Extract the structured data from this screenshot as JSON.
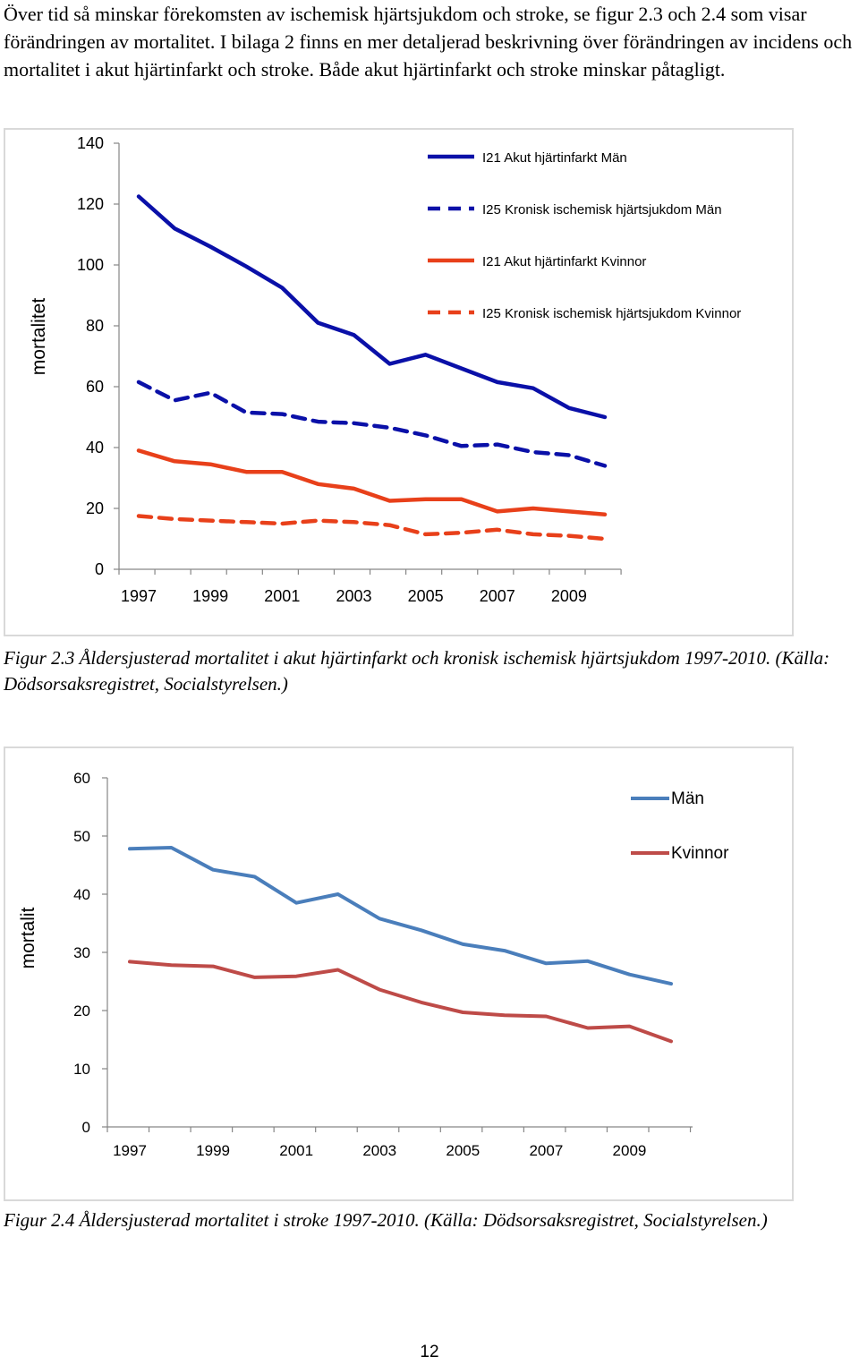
{
  "intro_text": "Över tid så minskar förekomsten av ischemisk hjärtsjukdom och stroke, se figur 2.3 och 2.4 som visar förändringen av mortalitet. I bilaga 2 finns en mer detaljerad beskrivning över förändringen av incidens och mortalitet i akut hjärtinfarkt och stroke. Både akut hjärtinfarkt och stroke minskar påtagligt.",
  "figure1": {
    "caption": "Figur 2.3 Åldersjusterad mortalitet i akut hjärtinfarkt och kronisk ischemisk hjärtsjukdom 1997-2010. (Källa: Dödsorsaksregistret, Socialstyrelsen.)"
  },
  "figure2": {
    "caption": "Figur 2.4 Åldersjusterad mortalitet i stroke 1997-2010. (Källa: Dödsorsaksregistret, Socialstyrelsen.)"
  },
  "page_number": "12",
  "chart_data": [
    {
      "type": "line",
      "title": "",
      "xlabel": "",
      "ylabel": "mortalitet",
      "ylim": [
        0,
        140
      ],
      "yticks": [
        0,
        20,
        40,
        60,
        80,
        100,
        120,
        140
      ],
      "x": [
        1997,
        1998,
        1999,
        2000,
        2001,
        2002,
        2003,
        2004,
        2005,
        2006,
        2007,
        2008,
        2009,
        2010
      ],
      "xtick_labels": [
        "1997",
        "1999",
        "2001",
        "2003",
        "2005",
        "2007",
        "2009"
      ],
      "legend_position": "top-right",
      "series": [
        {
          "name": "I21 Akut hjärtinfarkt Män",
          "color": "#0a10a8",
          "dash": "solid",
          "values": [
            122.5,
            112,
            106,
            99.5,
            92.5,
            81,
            77,
            67.5,
            70.5,
            66,
            61.5,
            59.5,
            53,
            50
          ]
        },
        {
          "name": "I25 Kronisk ischemisk hjärtsjukdom Män",
          "color": "#0a10a8",
          "dash": "dashed",
          "values": [
            61.5,
            55.5,
            58,
            51.5,
            51,
            48.5,
            48,
            46.5,
            44,
            40.5,
            41,
            38.5,
            37.5,
            34
          ]
        },
        {
          "name": "I21 Akut hjärtinfarkt Kvinnor",
          "color": "#e8401a",
          "dash": "solid",
          "values": [
            39,
            35.5,
            34.5,
            32,
            32,
            28,
            26.5,
            22.5,
            23,
            23,
            19,
            20,
            19,
            18
          ]
        },
        {
          "name": "I25 Kronisk ischemisk hjärtsjukdom Kvinnor",
          "color": "#e8401a",
          "dash": "dashed",
          "values": [
            17.5,
            16.5,
            16,
            15.5,
            15,
            16,
            15.5,
            14.5,
            11.5,
            12,
            13,
            11.5,
            11,
            10
          ]
        }
      ]
    },
    {
      "type": "line",
      "title": "",
      "xlabel": "",
      "ylabel": "mortalit",
      "ylim": [
        0,
        60
      ],
      "yticks": [
        0,
        10,
        20,
        30,
        40,
        50,
        60
      ],
      "x": [
        1997,
        1998,
        1999,
        2000,
        2001,
        2002,
        2003,
        2004,
        2005,
        2006,
        2007,
        2008,
        2009,
        2010
      ],
      "xtick_labels": [
        "1997",
        "1999",
        "2001",
        "2003",
        "2005",
        "2007",
        "2009"
      ],
      "legend_position": "top-right",
      "series": [
        {
          "name": "Män",
          "color": "#4a7ebb",
          "dash": "solid",
          "values": [
            47.8,
            48,
            44.2,
            43,
            38.5,
            40,
            35.8,
            33.8,
            31.4,
            30.3,
            28.1,
            28.5,
            26.2,
            24.6
          ]
        },
        {
          "name": "Kvinnor",
          "color": "#be4b48",
          "dash": "solid",
          "values": [
            28.4,
            27.8,
            27.6,
            25.7,
            25.9,
            27,
            23.6,
            21.4,
            19.7,
            19.2,
            19,
            17,
            17.3,
            14.7
          ]
        }
      ]
    }
  ]
}
